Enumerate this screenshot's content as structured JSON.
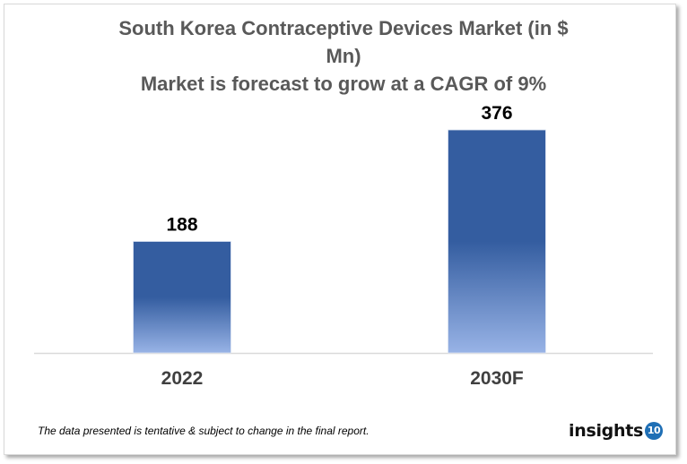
{
  "chart_data": {
    "type": "bar",
    "title_lines": [
      "South Korea Contraceptive Devices Market (in $",
      "Mn)",
      "Market is forecast to grow at a CAGR of 9%"
    ],
    "categories": [
      "2022",
      "2030F"
    ],
    "values": [
      188,
      376
    ],
    "data_labels": [
      "188",
      "376"
    ],
    "ylim": [
      0,
      376
    ],
    "grid": false,
    "legend": "none",
    "colors": {
      "bar_top": "#345DA0",
      "bar_bottom": "#98B3E6",
      "title": "#595959",
      "axis": "#d9d9d9"
    }
  },
  "footer": {
    "note": "The data presented is tentative & subject to change in the final report.",
    "logo_text": "insights",
    "logo_badge": "10"
  }
}
